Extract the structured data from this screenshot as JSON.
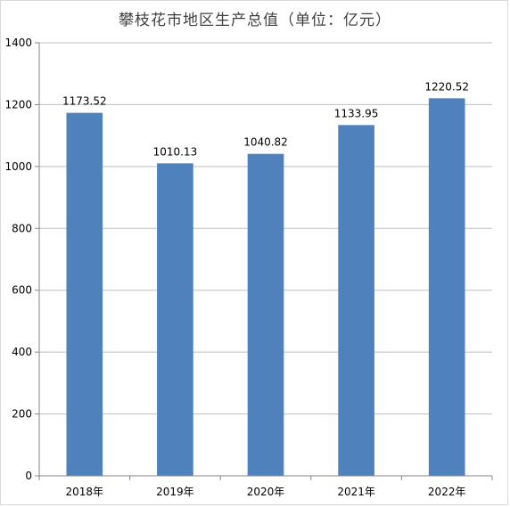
{
  "chart_data": {
    "type": "bar",
    "title": "攀枝花市地区生产总值（单位：亿元）",
    "categories": [
      "2018年",
      "2019年",
      "2020年",
      "2021年",
      "2022年"
    ],
    "values": [
      1173.52,
      1010.13,
      1040.82,
      1133.95,
      1220.52
    ],
    "data_labels": [
      "1173.52",
      "1010.13",
      "1040.82",
      "1133.95",
      "1220.52"
    ],
    "ylim": [
      0,
      1400
    ],
    "yticks": [
      0,
      200,
      400,
      600,
      800,
      1000,
      1200,
      1400
    ],
    "grid": true,
    "legend": "none",
    "bar_color": "#4f81bd",
    "grid_color": "#bfbfbf",
    "axis_color": "#868686"
  }
}
